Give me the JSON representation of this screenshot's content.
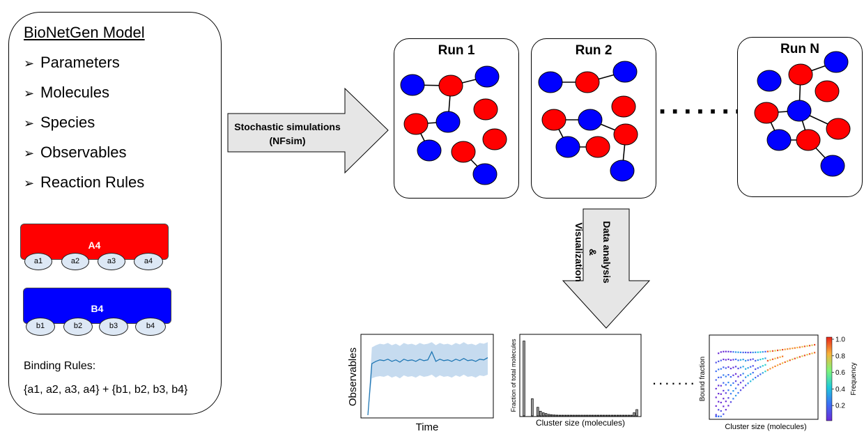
{
  "model": {
    "title": "BioNetGen Model",
    "bullet_glyph": "➢",
    "bullets": [
      "Parameters",
      "Molecules",
      "Species",
      "Observables",
      "Reaction Rules"
    ],
    "molecules": [
      {
        "name": "A4",
        "color": "#ff0000",
        "sites": [
          "a1",
          "a2",
          "a3",
          "a4"
        ]
      },
      {
        "name": "B4",
        "color": "#0000ff",
        "sites": [
          "b1",
          "b2",
          "b3",
          "b4"
        ]
      }
    ],
    "binding_rules_title": "Binding Rules:",
    "binding_rules": "{a1, a2, a3, a4} + {b1, b2, b3, b4}"
  },
  "simulation_arrow": {
    "line1": "Stochastic simulations",
    "line2": "(NFsim)"
  },
  "runs": [
    {
      "title": "Run 1"
    },
    {
      "title": "Run 2"
    },
    {
      "title": "Run N"
    }
  ],
  "runs_ellipsis": ".......",
  "analysis_arrow": {
    "line1": "Data analysis",
    "line2": "&",
    "line3": "Visualization"
  },
  "colors": {
    "red_molecule": "#ff0000",
    "blue_molecule": "#0000ff",
    "arrow_fill": "#e6e6e6",
    "series": "#1f77b4",
    "band": "#c6dbef"
  },
  "plots_ellipsis": ".......",
  "chart_data": [
    {
      "type": "line",
      "title": "",
      "xlabel": "Time",
      "ylabel": "Observables",
      "x": [
        0,
        1,
        2,
        3,
        4,
        5,
        6,
        7,
        8,
        9,
        10,
        11,
        12,
        13,
        14,
        15,
        16,
        17,
        18,
        19,
        20,
        21,
        22,
        23,
        24,
        25,
        26,
        27,
        28,
        29,
        30
      ],
      "series": [
        {
          "values": [
            0.0,
            0.7,
            0.73,
            0.75,
            0.74,
            0.76,
            0.73,
            0.75,
            0.72,
            0.76,
            0.74,
            0.75,
            0.73,
            0.76,
            0.74,
            0.75,
            0.86,
            0.73,
            0.76,
            0.74,
            0.75,
            0.73,
            0.76,
            0.74,
            0.77,
            0.74,
            0.75,
            0.73,
            0.76,
            0.75,
            0.78
          ],
          "lower": [
            0.0,
            0.5,
            0.52,
            0.53,
            0.52,
            0.54,
            0.51,
            0.53,
            0.5,
            0.54,
            0.52,
            0.53,
            0.51,
            0.54,
            0.52,
            0.53,
            0.55,
            0.51,
            0.54,
            0.52,
            0.53,
            0.51,
            0.54,
            0.52,
            0.55,
            0.52,
            0.53,
            0.51,
            0.54,
            0.53,
            0.55
          ],
          "upper": [
            0.0,
            0.92,
            0.95,
            0.97,
            0.96,
            0.98,
            0.95,
            0.97,
            0.94,
            0.98,
            0.96,
            0.97,
            0.95,
            0.98,
            0.96,
            0.97,
            0.99,
            0.95,
            0.98,
            0.96,
            0.97,
            0.95,
            0.98,
            0.96,
            0.99,
            0.96,
            0.97,
            0.95,
            0.98,
            0.97,
            0.99
          ]
        }
      ],
      "ylim": [
        0,
        1.05
      ]
    },
    {
      "type": "bar",
      "title": "",
      "xlabel": "Cluster size (molecules)",
      "ylabel": "Fraction of total molecules",
      "x": [
        1,
        2,
        3,
        4,
        5,
        6,
        7,
        8,
        9,
        10,
        11,
        12,
        13,
        14,
        15,
        16,
        17,
        18,
        19,
        20,
        21,
        22,
        23,
        24,
        25,
        26,
        27,
        28,
        29,
        30,
        31,
        32,
        33,
        34,
        35,
        36,
        37,
        38,
        39,
        40,
        41,
        42
      ],
      "values": [
        0.96,
        0,
        0,
        0.22,
        0,
        0.11,
        0.06,
        0.04,
        0.03,
        0.02,
        0.015,
        0.012,
        0.01,
        0.008,
        0.006,
        0.005,
        0.004,
        0.003,
        0.003,
        0.002,
        0.002,
        0.002,
        0.001,
        0.001,
        0.001,
        0.001,
        0.001,
        0.001,
        0.001,
        0.001,
        0.001,
        0.001,
        0.001,
        0.001,
        0.001,
        0.001,
        0.001,
        0.001,
        0.001,
        0.002,
        0.04,
        0.08
      ],
      "ylim": [
        0,
        1.0
      ]
    },
    {
      "type": "scatter",
      "title": "",
      "xlabel": "Cluster size (molecules)",
      "ylabel": "Bound fraction",
      "colorbar": {
        "label": "Frequency",
        "ticks": [
          "1.0",
          "0.8",
          "0.6",
          "0.4",
          "0.2"
        ],
        "range": [
          0.05,
          1.0
        ]
      },
      "xlim": [
        0,
        1
      ],
      "ylim": [
        0,
        1
      ]
    }
  ]
}
